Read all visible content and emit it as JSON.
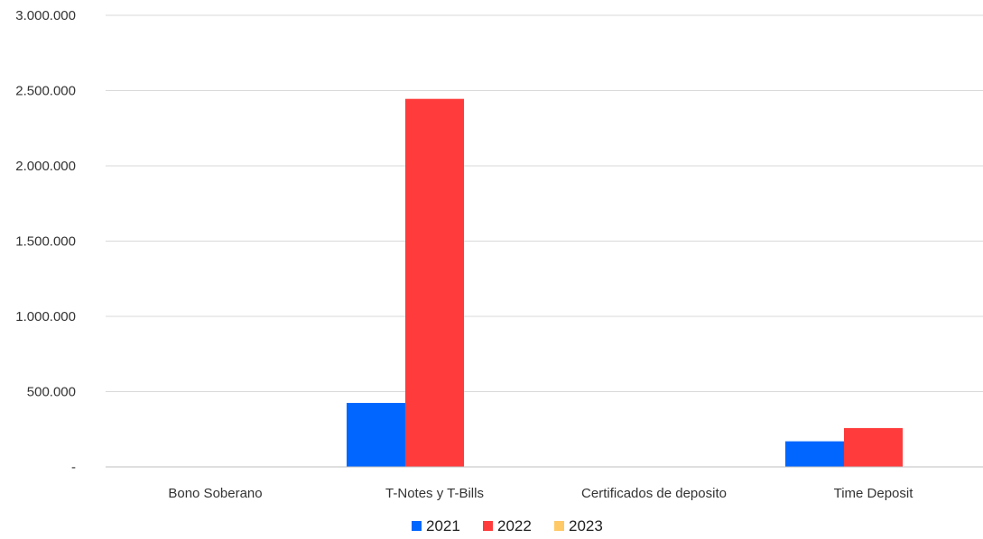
{
  "chart_data": {
    "type": "bar",
    "categories": [
      "Bono Soberano",
      "T-Notes y T-Bills",
      "Certificados de deposito",
      "Time Deposit"
    ],
    "series": [
      {
        "name": "2021",
        "color": "#0066ff",
        "values": [
          0,
          425000,
          0,
          170000
        ]
      },
      {
        "name": "2022",
        "color": "#ff3b3b",
        "values": [
          0,
          2445000,
          0,
          258000
        ]
      },
      {
        "name": "2023",
        "color": "#ffc966",
        "values": [
          0,
          0,
          0,
          0
        ]
      }
    ],
    "ylim": [
      0,
      3000000
    ],
    "yticks": [
      0,
      500000,
      1000000,
      1500000,
      2000000,
      2500000,
      3000000
    ],
    "ytick_labels": [
      "-",
      "500.000",
      "1.000.000",
      "1.500.000",
      "2.000.000",
      "2.500.000",
      "3.000.000"
    ],
    "grid": true,
    "legend_position": "bottom"
  }
}
